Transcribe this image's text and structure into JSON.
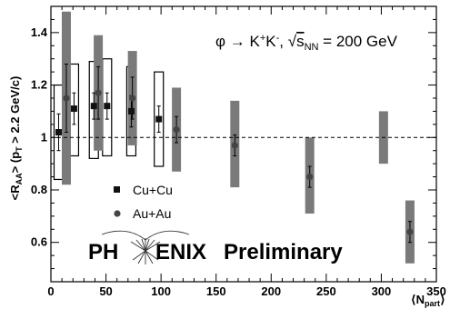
{
  "chart_data": {
    "type": "scatter",
    "xlabel": "⟨N",
    "xlabel_sub": "part",
    "xlabel_end": "⟩",
    "ylabel": "<R",
    "ylabel_sub1": "AA",
    "ylabel_mid": "> (p",
    "ylabel_sub2": "T",
    "ylabel_end": " > 2.2 GeV/c)",
    "xlim": [
      0,
      350
    ],
    "ylim": [
      0.45,
      1.5
    ],
    "x_ticks": [
      0,
      50,
      100,
      150,
      200,
      250,
      300,
      350
    ],
    "y_ticks": [
      0.6,
      0.8,
      1,
      1.2,
      1.4
    ],
    "x_tick_labels": [
      "0",
      "50",
      "100",
      "150",
      "200",
      "250",
      "300",
      "350"
    ],
    "y_tick_labels": [
      "0.6",
      "0.8",
      "1",
      "1.2",
      "1.4"
    ],
    "reference_line": 1.0,
    "annotation": {
      "phi": "φ → K",
      "sup1": "+",
      "k2": "K",
      "sup2": "-",
      "comma": ", ",
      "sqrt": "√",
      "s": "s",
      "sub": "NN",
      "rest": " = 200 GeV"
    },
    "series": [
      {
        "name": "Cu+Cu",
        "marker": "square",
        "box_style": "open",
        "points": [
          {
            "x": 7,
            "y": 1.02,
            "err": 0.07,
            "sys_lo": 0.84,
            "sys_hi": 1.2
          },
          {
            "x": 21,
            "y": 1.11,
            "err": 0.06,
            "sys_lo": 0.93,
            "sys_hi": 1.28
          },
          {
            "x": 39,
            "y": 1.12,
            "err": 0.05,
            "sys_lo": 0.92,
            "sys_hi": 1.29
          },
          {
            "x": 51,
            "y": 1.12,
            "err": 0.05,
            "sys_lo": 0.93,
            "sys_hi": 1.3
          },
          {
            "x": 73,
            "y": 1.1,
            "err": 0.06,
            "sys_lo": 0.93,
            "sys_hi": 1.27
          },
          {
            "x": 98,
            "y": 1.07,
            "err": 0.05,
            "sys_lo": 0.89,
            "sys_hi": 1.25
          }
        ]
      },
      {
        "name": "Au+Au",
        "marker": "circle",
        "box_style": "filled",
        "points": [
          {
            "x": 14,
            "y": 1.15,
            "err": 0.13,
            "sys_lo": 0.82,
            "sys_hi": 1.48
          },
          {
            "x": 43,
            "y": 1.17,
            "err": 0.1,
            "sys_lo": 0.95,
            "sys_hi": 1.39
          },
          {
            "x": 74,
            "y": 1.15,
            "err": 0.08,
            "sys_lo": 0.97,
            "sys_hi": 1.33
          },
          {
            "x": 114,
            "y": 1.03,
            "err": 0.05,
            "sys_lo": 0.87,
            "sys_hi": 1.19
          },
          {
            "x": 167,
            "y": 0.97,
            "err": 0.04,
            "sys_lo": 0.81,
            "sys_hi": 1.14
          },
          {
            "x": 235,
            "y": 0.85,
            "err": 0.04,
            "sys_lo": 0.71,
            "sys_hi": 1.0
          },
          {
            "x": 302,
            "y": null,
            "err": 0,
            "sys_lo": 0.9,
            "sys_hi": 1.1
          },
          {
            "x": 326,
            "y": 0.64,
            "err": 0.04,
            "sys_lo": 0.52,
            "sys_hi": 0.76
          }
        ]
      }
    ],
    "legend": [
      {
        "label": "Cu+Cu",
        "marker": "square"
      },
      {
        "label": "Au+Au",
        "marker": "circle"
      }
    ],
    "legend_position": "lower-left",
    "colors": {
      "axis": "#000000",
      "filled_box": "#7a7a7a",
      "open_box_stroke": "#000000",
      "marker_square": "#111111",
      "marker_circle": "#444444",
      "reference": "#000000"
    }
  },
  "logo": {
    "left": "PH",
    "right": "ENIX",
    "tail": "Preliminary"
  }
}
